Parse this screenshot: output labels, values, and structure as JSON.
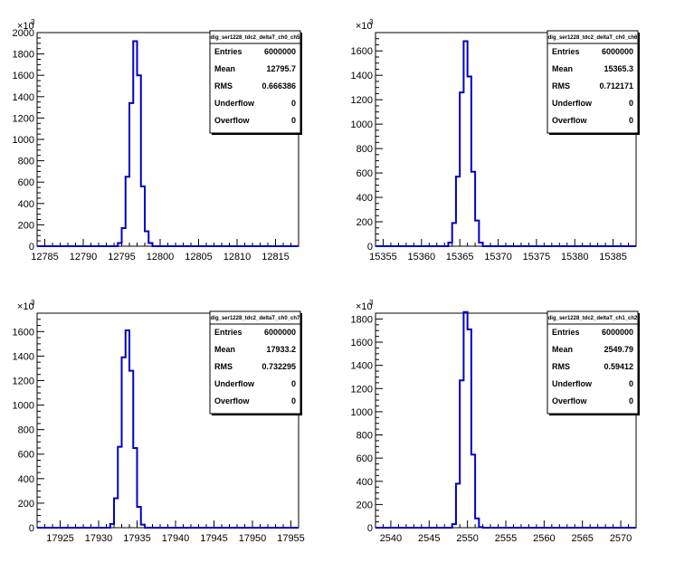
{
  "chart_data": [
    {
      "type": "bar",
      "title": "dig_ser1228_tdc2_deltaT_ch0_ch5",
      "x_ticks": [
        12785,
        12790,
        12795,
        12800,
        12805,
        12810,
        12815
      ],
      "xlim": [
        12784,
        12818
      ],
      "y_ticks": [
        0,
        200,
        400,
        600,
        800,
        1000,
        1200,
        1400,
        1600,
        1800,
        2000
      ],
      "ylim": [
        0,
        2000
      ],
      "y_multiplier": "×10",
      "y_multiplier_exp": "3",
      "bin_width": 0.5,
      "bins": [
        [
          12794.0,
          0
        ],
        [
          12794.5,
          30
        ],
        [
          12795.0,
          170
        ],
        [
          12795.5,
          650
        ],
        [
          12796.0,
          1340
        ],
        [
          12796.5,
          1920
        ],
        [
          12797.0,
          1600
        ],
        [
          12797.5,
          560
        ],
        [
          12798.0,
          140
        ],
        [
          12798.5,
          30
        ],
        [
          12799.0,
          0
        ]
      ],
      "stats": [
        {
          "label": "Entries",
          "value": "6000000"
        },
        {
          "label": "Mean",
          "value": "12795.7"
        },
        {
          "label": "RMS",
          "value": "0.666386"
        },
        {
          "label": "Underflow",
          "value": "0"
        },
        {
          "label": "Overflow",
          "value": "0"
        }
      ]
    },
    {
      "type": "bar",
      "title": "dig_ser1228_tdc2_deltaT_ch0_ch6",
      "x_ticks": [
        15355,
        15360,
        15365,
        15370,
        15375,
        15380,
        15385
      ],
      "xlim": [
        15354,
        15388
      ],
      "y_ticks": [
        0,
        200,
        400,
        600,
        800,
        1000,
        1200,
        1400,
        1600
      ],
      "ylim": [
        0,
        1750
      ],
      "y_multiplier": "×10",
      "y_multiplier_exp": "3",
      "bin_width": 0.5,
      "bins": [
        [
          15363.0,
          0
        ],
        [
          15363.5,
          30
        ],
        [
          15364.0,
          190
        ],
        [
          15364.5,
          570
        ],
        [
          15365.0,
          1260
        ],
        [
          15365.5,
          1680
        ],
        [
          15366.0,
          1390
        ],
        [
          15366.5,
          610
        ],
        [
          15367.0,
          210
        ],
        [
          15367.5,
          30
        ],
        [
          15368.0,
          0
        ]
      ],
      "stats": [
        {
          "label": "Entries",
          "value": "6000000"
        },
        {
          "label": "Mean",
          "value": "15365.3"
        },
        {
          "label": "RMS",
          "value": "0.712171"
        },
        {
          "label": "Underflow",
          "value": "0"
        },
        {
          "label": "Overflow",
          "value": "0"
        }
      ]
    },
    {
      "type": "bar",
      "title": "dig_ser1228_tdc2_deltaT_ch0_ch7",
      "x_ticks": [
        17925,
        17930,
        17935,
        17940,
        17945,
        17950,
        17955
      ],
      "xlim": [
        17922,
        17956
      ],
      "y_ticks": [
        0,
        200,
        400,
        600,
        800,
        1000,
        1200,
        1400,
        1600
      ],
      "ylim": [
        0,
        1750
      ],
      "y_multiplier": "×10",
      "y_multiplier_exp": "3",
      "bin_width": 0.5,
      "bins": [
        [
          17931.0,
          0
        ],
        [
          17931.5,
          30
        ],
        [
          17932.0,
          240
        ],
        [
          17932.5,
          660
        ],
        [
          17933.0,
          1390
        ],
        [
          17933.5,
          1610
        ],
        [
          17934.0,
          1280
        ],
        [
          17934.5,
          650
        ],
        [
          17935.0,
          170
        ],
        [
          17935.5,
          25
        ],
        [
          17936.0,
          0
        ]
      ],
      "stats": [
        {
          "label": "Entries",
          "value": "6000000"
        },
        {
          "label": "Mean",
          "value": "17933.2"
        },
        {
          "label": "RMS",
          "value": "0.732295"
        },
        {
          "label": "Underflow",
          "value": "0"
        },
        {
          "label": "Overflow",
          "value": "0"
        }
      ]
    },
    {
      "type": "bar",
      "title": "dig_ser1228_tdc2_deltaT_ch1_ch2",
      "x_ticks": [
        2540,
        2545,
        2550,
        2555,
        2560,
        2565,
        2570
      ],
      "xlim": [
        2538,
        2572
      ],
      "y_ticks": [
        0,
        200,
        400,
        600,
        800,
        1000,
        1200,
        1400,
        1600,
        1800
      ],
      "ylim": [
        0,
        1850
      ],
      "y_multiplier": "×10",
      "y_multiplier_exp": "3",
      "bin_width": 0.5,
      "bins": [
        [
          2547.5,
          0
        ],
        [
          2548.0,
          30
        ],
        [
          2548.5,
          380
        ],
        [
          2549.0,
          1270
        ],
        [
          2549.5,
          1860
        ],
        [
          2550.0,
          1710
        ],
        [
          2550.5,
          630
        ],
        [
          2551.0,
          80
        ],
        [
          2551.5,
          5
        ],
        [
          2552.0,
          0
        ]
      ],
      "stats": [
        {
          "label": "Entries",
          "value": "6000000"
        },
        {
          "label": "Mean",
          "value": "2549.79"
        },
        {
          "label": "RMS",
          "value": "0.59412"
        },
        {
          "label": "Underflow",
          "value": "0"
        },
        {
          "label": "Overflow",
          "value": "0"
        }
      ]
    }
  ]
}
